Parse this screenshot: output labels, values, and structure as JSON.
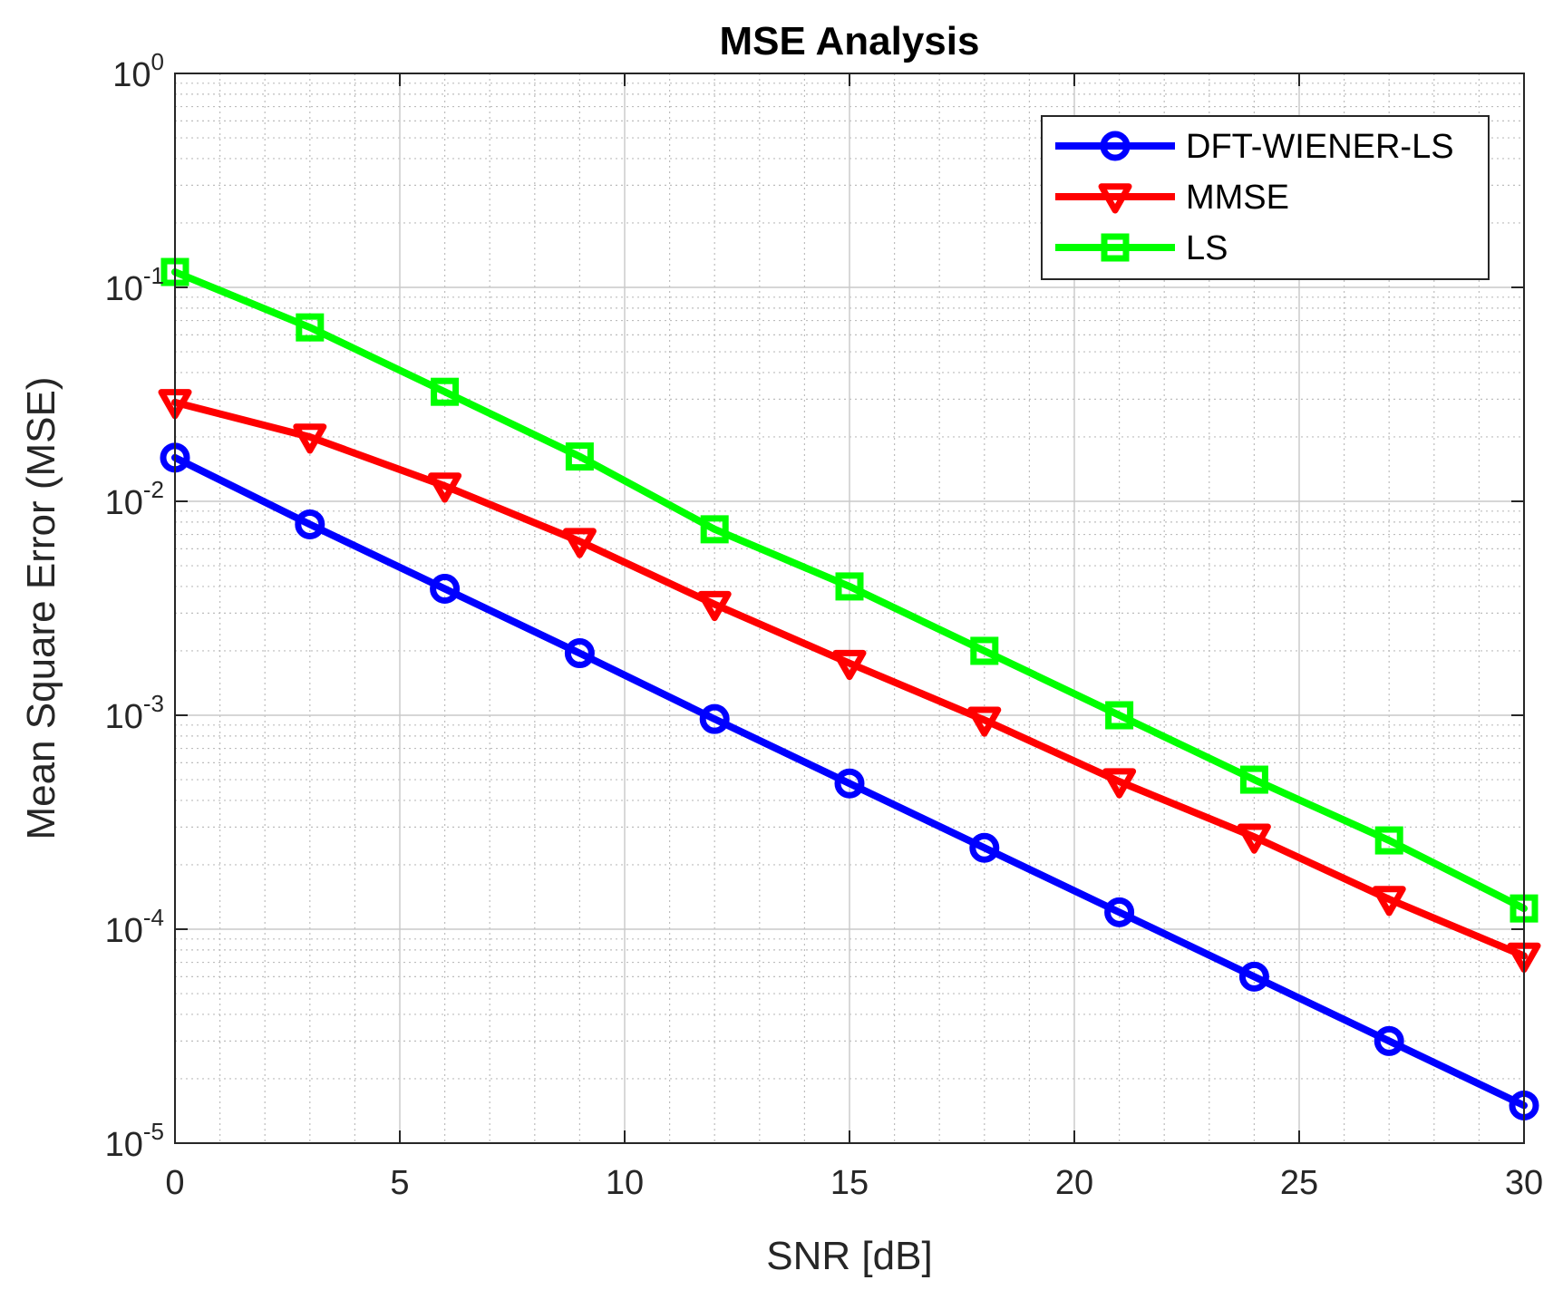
{
  "chart_data": {
    "type": "line",
    "title": "MSE Analysis",
    "xlabel": "SNR [dB]",
    "ylabel": "Mean Square Error (MSE)",
    "yscale": "log",
    "xlim": [
      0,
      30
    ],
    "ylim": [
      1e-05,
      1
    ],
    "grid": true,
    "minor_grid": true,
    "legend_position": "top-right",
    "x_ticks": [
      {
        "value": 0,
        "label": "0"
      },
      {
        "value": 5,
        "label": "5"
      },
      {
        "value": 10,
        "label": "10"
      },
      {
        "value": 15,
        "label": "15"
      },
      {
        "value": 20,
        "label": "20"
      },
      {
        "value": 25,
        "label": "25"
      },
      {
        "value": 30,
        "label": "30"
      }
    ],
    "y_ticks": [
      {
        "value": 1e-05,
        "base": "10",
        "exponent": "-5"
      },
      {
        "value": 0.0001,
        "base": "10",
        "exponent": "-4"
      },
      {
        "value": 0.001,
        "base": "10",
        "exponent": "-3"
      },
      {
        "value": 0.01,
        "base": "10",
        "exponent": "-2"
      },
      {
        "value": 0.1,
        "base": "10",
        "exponent": "-1"
      },
      {
        "value": 1,
        "base": "10",
        "exponent": "0"
      }
    ],
    "x": [
      0,
      3,
      6,
      9,
      12,
      15,
      18,
      21,
      24,
      27,
      30
    ],
    "series": [
      {
        "name": "DFT-WIENER-LS",
        "color": "#0000ff",
        "marker": "circle",
        "values": [
          0.016,
          0.0078,
          0.0039,
          0.00195,
          0.00096,
          0.00048,
          0.00024,
          0.00012,
          6e-05,
          3e-05,
          1.5e-05
        ]
      },
      {
        "name": "MMSE",
        "color": "#ff0000",
        "marker": "triangle-down",
        "values": [
          0.029,
          0.02,
          0.0118,
          0.0065,
          0.0033,
          0.00175,
          0.00095,
          0.00049,
          0.00027,
          0.000138,
          7.5e-05
        ]
      },
      {
        "name": "LS",
        "color": "#00ff00",
        "marker": "square",
        "values": [
          0.118,
          0.065,
          0.0325,
          0.0162,
          0.0074,
          0.004,
          0.002,
          0.001,
          0.0005,
          0.00026,
          0.000125
        ]
      }
    ]
  }
}
